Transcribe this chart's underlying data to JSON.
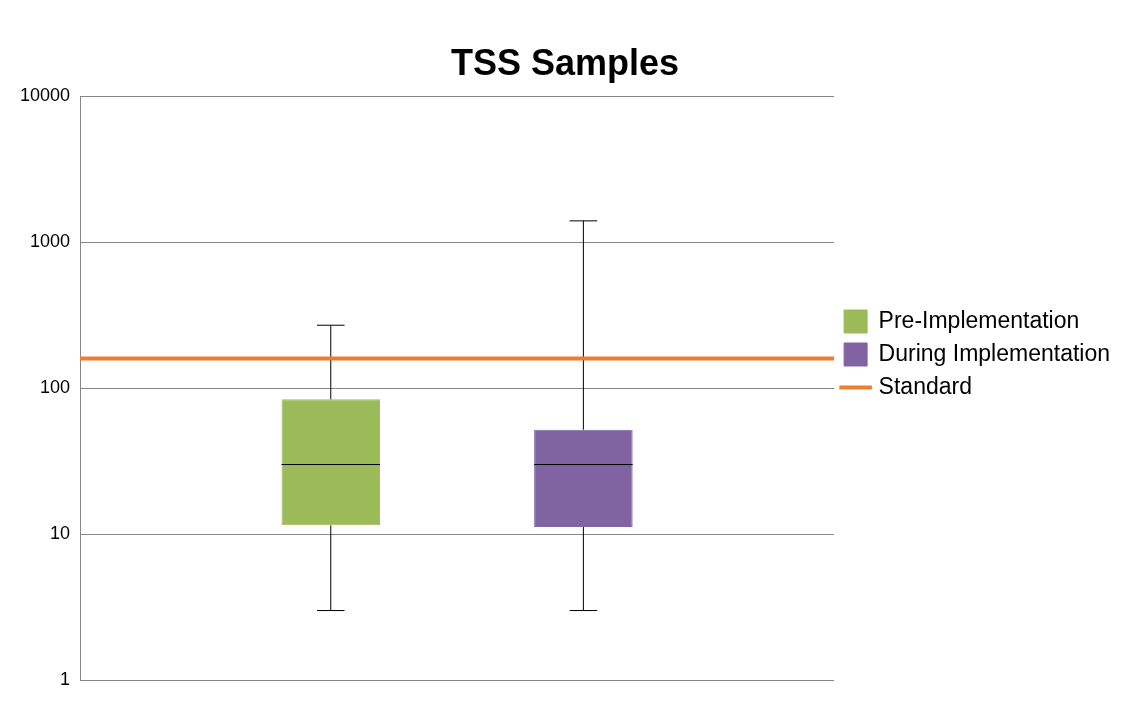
{
  "chart_data": {
    "type": "box",
    "title": "TSS Samples",
    "categories": [
      null
    ],
    "series": [
      {
        "name": "Pre-Implementation",
        "color": "#9bbb59",
        "boxes": [
          {
            "low": 3,
            "q1": 11.5,
            "median": 30,
            "q3": 84,
            "high": 270
          }
        ]
      },
      {
        "name": "During Implementation",
        "color": "#8064a2",
        "boxes": [
          {
            "low": 3,
            "q1": 11.2,
            "median": 30,
            "q3": 52,
            "high": 1400
          }
        ]
      }
    ],
    "log": true,
    "ylim": [
      1,
      10000
    ],
    "yticks": [
      1,
      10,
      100,
      1000,
      10000
    ],
    "grid": "y",
    "legend": "right",
    "tick_labels": "y",
    "ref_lines": [
      {
        "axis": "y",
        "value": 160,
        "label": "Standard",
        "color": "#ed7d31"
      }
    ]
  }
}
